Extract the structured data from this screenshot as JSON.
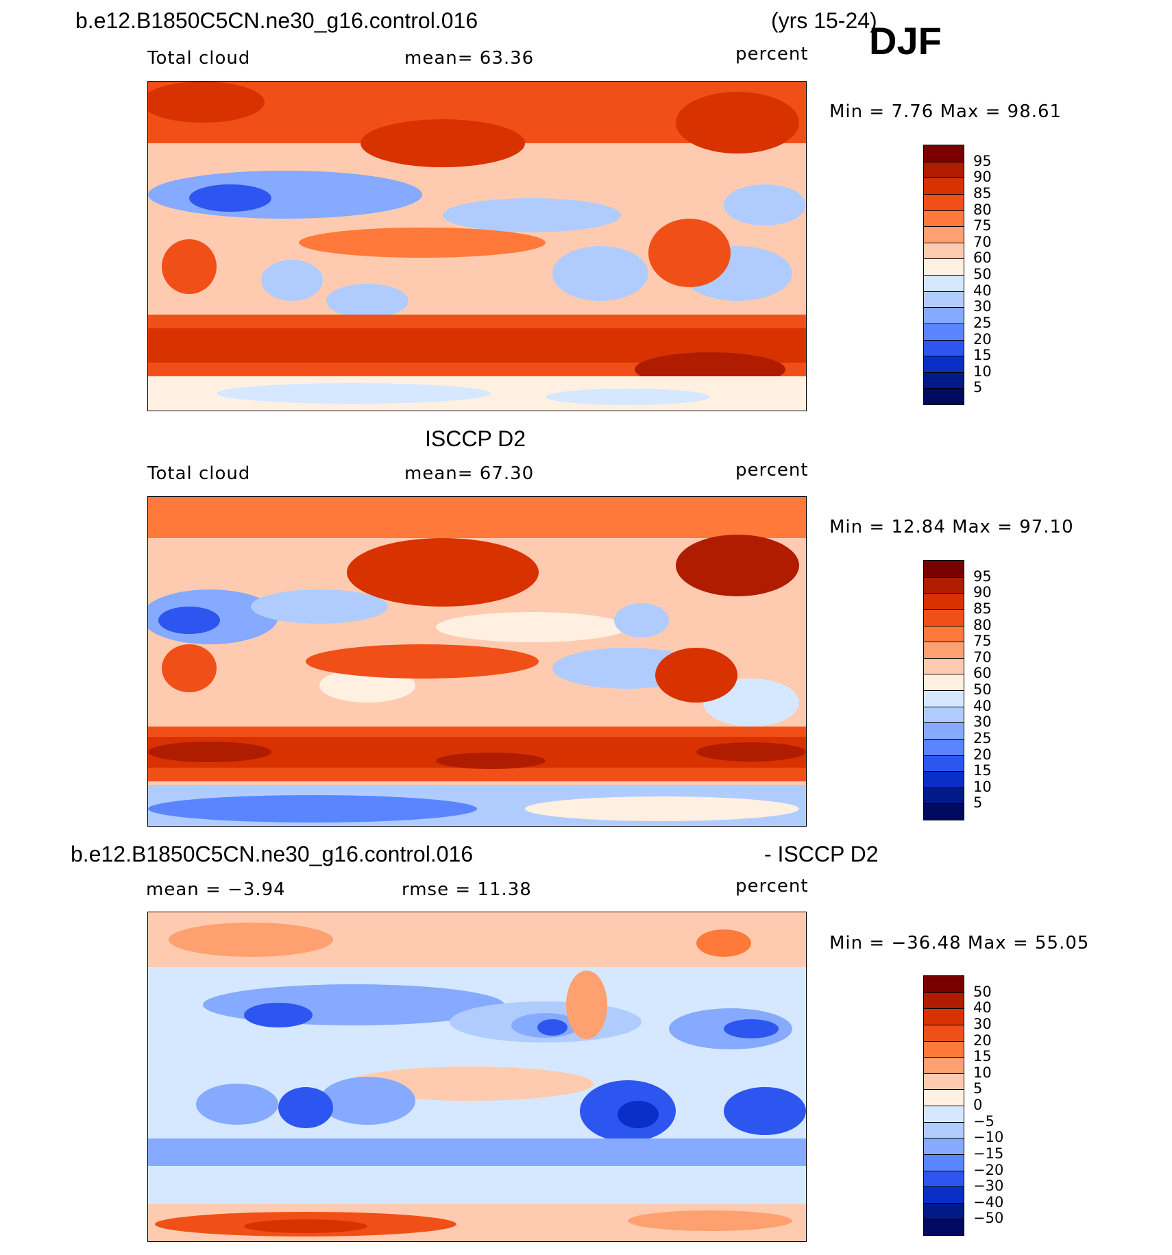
{
  "header": {
    "case_name": "b.e12.B1850C5CN.ne30_g16.control.016",
    "years": "(yrs 15-24)",
    "season": "DJF"
  },
  "panels": [
    {
      "title": "",
      "variable": "Total cloud",
      "stat_left": "mean=   63.36",
      "units": "percent",
      "minmax": "Min =    7.76 Max =   98.61",
      "levels": [
        "95",
        "90",
        "85",
        "80",
        "75",
        "70",
        "60",
        "50",
        "40",
        "30",
        "25",
        "20",
        "15",
        "10",
        "5"
      ],
      "colors": [
        "#7a0000",
        "#b01c00",
        "#d83200",
        "#f05018",
        "#ff7a3a",
        "#ffa070",
        "#ffcbb0",
        "#fff0e2",
        "#d6e8ff",
        "#b0ccff",
        "#85aaff",
        "#5b85ff",
        "#2d55f0",
        "#0a2ec8",
        "#001a8a",
        "#000a60"
      ]
    },
    {
      "title": "ISCCP D2",
      "variable": "Total cloud",
      "stat_left": "mean=   67.30",
      "units": "percent",
      "minmax": "Min =   12.84 Max =   97.10",
      "levels": [
        "95",
        "90",
        "85",
        "80",
        "75",
        "70",
        "60",
        "50",
        "40",
        "30",
        "25",
        "20",
        "15",
        "10",
        "5"
      ],
      "colors": [
        "#7a0000",
        "#b01c00",
        "#d83200",
        "#f05018",
        "#ff7a3a",
        "#ffa070",
        "#ffcbb0",
        "#fff0e2",
        "#d6e8ff",
        "#b0ccff",
        "#85aaff",
        "#5b85ff",
        "#2d55f0",
        "#0a2ec8",
        "#001a8a",
        "#000a60"
      ]
    },
    {
      "title_left": "b.e12.B1850C5CN.ne30_g16.control.016",
      "title_right": "- ISCCP D2",
      "stat_left": "mean  =   −3.94",
      "stat_mid": "rmse  =   11.38",
      "units": "percent",
      "minmax": "Min = −36.48 Max =   55.05",
      "levels": [
        "50",
        "40",
        "30",
        "20",
        "15",
        "10",
        "5",
        "0",
        "−5",
        "−10",
        "−15",
        "−20",
        "−30",
        "−40",
        "−50"
      ],
      "colors": [
        "#7a0000",
        "#b01c00",
        "#d83200",
        "#f05018",
        "#ff7a3a",
        "#ffa070",
        "#ffcbb0",
        "#fff0e2",
        "#d6e8ff",
        "#b0ccff",
        "#85aaff",
        "#5b85ff",
        "#2d55f0",
        "#0a2ec8",
        "#001a8a",
        "#000a60"
      ]
    }
  ]
}
